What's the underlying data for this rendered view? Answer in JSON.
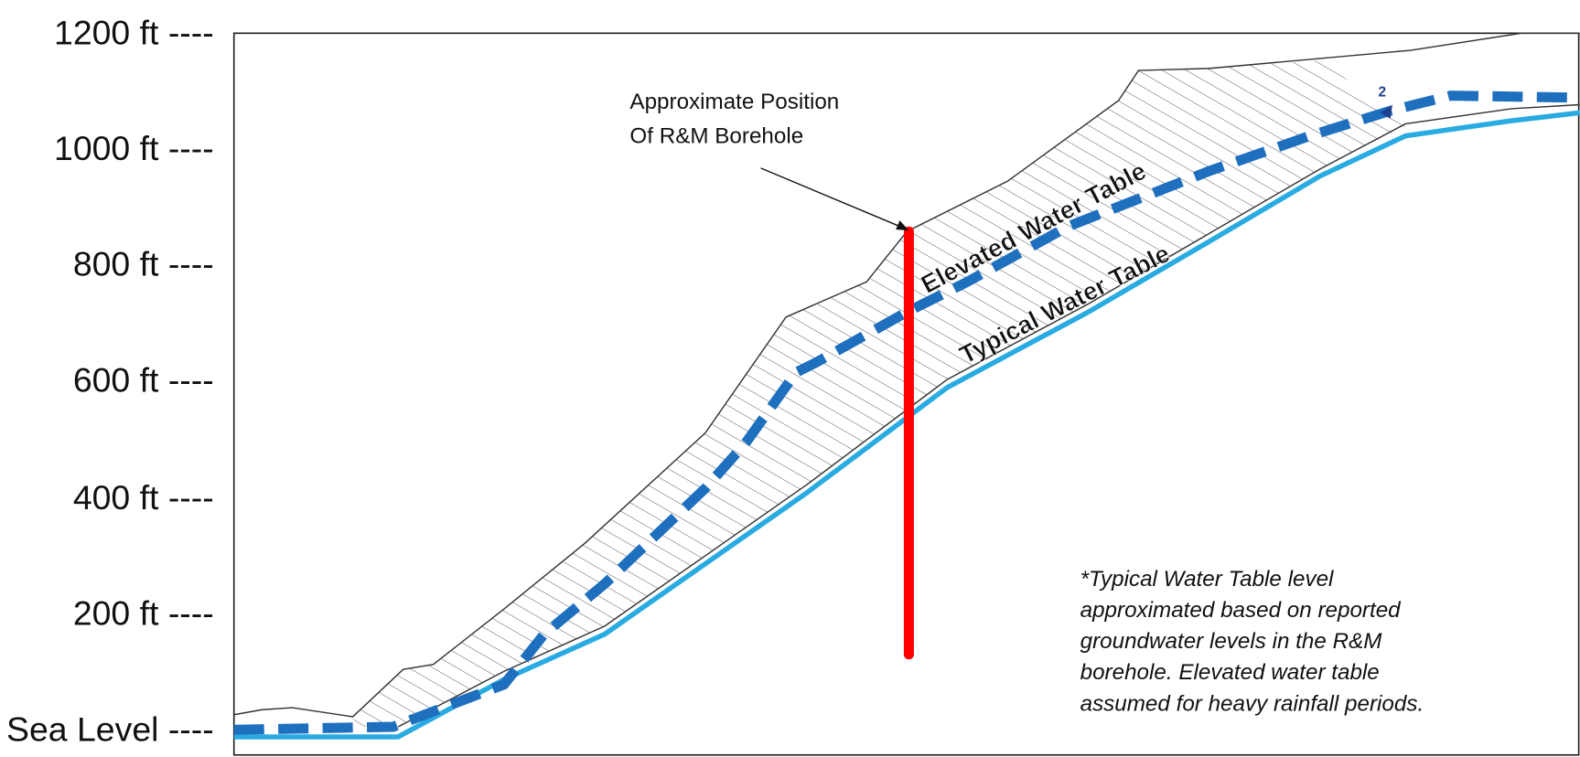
{
  "axis": {
    "labels": [
      "1200 ft ----",
      "1000 ft ----",
      "800 ft ----",
      "600 ft ----",
      "400 ft ----",
      "200 ft ----",
      "Sea Level ----"
    ]
  },
  "annotations": {
    "borehole": [
      "Approximate Position",
      "Of  R&M Borehole"
    ],
    "elevated_label": "Elevated Water Table",
    "typical_label": "Typical Water Table",
    "marker": "2",
    "note": [
      "*Typical Water Table level",
      "approximated based on reported",
      "groundwater levels in the R&M",
      "borehole.  Elevated water table",
      "assumed for heavy rainfall periods."
    ]
  }
}
